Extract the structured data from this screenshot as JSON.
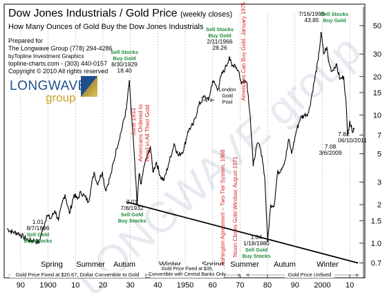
{
  "chart_data": {
    "type": "line",
    "title": "Dow Jones Industrials / Gold Price",
    "title_suffix": "(weekly closes)",
    "subtitle": "How Many Ounces of Gold Buy the Dow Jones Industrials",
    "credits": [
      "Prepared for",
      "The Longwave Group (778) 294-4286",
      "byTopline Investment Graphics",
      "topline-charts.com - (303) 440-0157",
      "Copyright © 2010   All rights reserved"
    ],
    "logo_text": "LONGWAVE",
    "logo_subtext": "group",
    "watermark": "LONGWAVE group",
    "y_scale": "log",
    "ylim": [
      0.6,
      70
    ],
    "xlim": [
      1885,
      2014
    ],
    "y_ticks": [
      0.7,
      1.0,
      1.5,
      2,
      3,
      5,
      7,
      10,
      15,
      20,
      30,
      50
    ],
    "y_tick_labels": [
      "0.7",
      "1.0",
      "1.5",
      "2",
      "3",
      "5",
      "7",
      "10",
      "15",
      "20",
      "30",
      "50"
    ],
    "x_ticks": [
      1890,
      1900,
      1910,
      1920,
      1930,
      1940,
      1950,
      1960,
      1970,
      1980,
      1990,
      2000,
      2010
    ],
    "x_tick_labels": [
      "90",
      "1900",
      "10",
      "20",
      "30",
      "40",
      "1950",
      "60",
      "70",
      "80",
      "90",
      "2000",
      "10"
    ],
    "grid": "vertical dotted",
    "series": [
      {
        "x": [
          1885,
          1887,
          1889,
          1891,
          1893,
          1895,
          1896.6,
          1898,
          1899.5,
          1901,
          1902.5,
          1903.8,
          1905.5,
          1906.2,
          1907.8,
          1909.5,
          1910.7,
          1912,
          1913.5,
          1914.7,
          1915.8,
          1916.8,
          1917.9,
          1919.8,
          1920.9,
          1921.6,
          1923,
          1925,
          1927,
          1928.5,
          1929.66,
          1930.3,
          1931,
          1931.8,
          1932.5,
          1933.2,
          1934,
          1935,
          1936.5,
          1937.3,
          1938.2,
          1939.5,
          1941,
          1942.3,
          1944,
          1946,
          1947.5,
          1949.5,
          1951,
          1953,
          1955,
          1957,
          1958.5,
          1960,
          1962,
          1963,
          1964.5,
          1966.12,
          1967,
          1968,
          1969.5,
          1970.5,
          1971.5,
          1972.5,
          1973.7,
          1974.8,
          1975.8,
          1976.8,
          1978,
          1979,
          1980.05,
          1981.2,
          1982.5,
          1983.6,
          1985,
          1986.5,
          1987.8,
          1988.8,
          1990.5,
          1992,
          1993.5,
          1995,
          1997,
          1998.5,
          1999.54,
          2000.5,
          2001.6,
          2002.3,
          2003.5,
          2005,
          2006.5,
          2007.8,
          2008.7,
          2009.18,
          2010,
          2010.8,
          2011.44
        ],
        "values": [
          1.3,
          1.22,
          1.2,
          1.12,
          1.05,
          1.05,
          1.01,
          1.25,
          1.65,
          1.55,
          1.8,
          1.5,
          2.2,
          2.4,
          1.7,
          2.4,
          2.2,
          2.5,
          2.3,
          2.1,
          2.8,
          3.6,
          2.9,
          3.6,
          2.6,
          2.8,
          3.5,
          5.5,
          8.0,
          11.0,
          18.4,
          10.5,
          7.0,
          3.5,
          2.01,
          3.5,
          2.9,
          4.0,
          5.0,
          5.7,
          3.6,
          4.3,
          3.3,
          3.1,
          4.2,
          6.0,
          4.8,
          5.4,
          7.5,
          8.5,
          12.0,
          14.0,
          13.0,
          18.5,
          16.0,
          20.0,
          23.0,
          28.26,
          24.0,
          25.0,
          22.0,
          17.5,
          19.0,
          18.0,
          10.0,
          4.0,
          5.5,
          6.0,
          4.8,
          3.3,
          1.04,
          2.0,
          2.0,
          3.5,
          3.8,
          4.5,
          6.5,
          5.0,
          7.5,
          9.5,
          10.0,
          10.5,
          18.0,
          27.0,
          43.85,
          30.0,
          34.0,
          26.0,
          22.0,
          25.0,
          19.0,
          20.0,
          12.0,
          7.08,
          9.0,
          7.6,
          7.82
        ]
      }
    ],
    "trendline": {
      "x": [
        1928.5,
        2013
      ],
      "values": [
        2.1,
        0.7
      ]
    },
    "annotations": [
      {
        "id": "a1896",
        "x": 1896.6,
        "value": 1.01,
        "lines": [
          "1.01",
          "8/7/1896",
          "Sell Gold",
          "Buy Stocks"
        ]
      },
      {
        "id": "a1929",
        "x": 1929.66,
        "value": 18.4,
        "lines": [
          "Sell Stocks",
          "Buy Gold",
          "8/30/1929",
          "18.40"
        ]
      },
      {
        "id": "a1932",
        "x": 1932.5,
        "value": 2.01,
        "lines": [
          "2.01",
          "7/8/1932",
          "Sell Gold",
          "Buy Stocks"
        ]
      },
      {
        "id": "a1966",
        "x": 1966.12,
        "value": 28.26,
        "lines": [
          "Sell Stocks",
          "Buy Gold",
          "2/11/1966",
          "28.26"
        ]
      },
      {
        "id": "a1980",
        "x": 1980.05,
        "value": 1.04,
        "lines": [
          "1.04",
          "1/18/1980",
          "Sell Gold",
          "Buy Stocks"
        ]
      },
      {
        "id": "a1999",
        "x": 1999.54,
        "value": 43.85,
        "lines": [
          "7/16/1999",
          "43.85"
        ]
      },
      {
        "id": "a1999b",
        "lines": [
          "Sell Stocks",
          "Buy Gold"
        ]
      },
      {
        "id": "a2009",
        "x": 2009.18,
        "value": 7.08,
        "lines": [
          "7.08",
          "3/6/2009"
        ]
      },
      {
        "id": "a2011",
        "x": 2011.44,
        "value": 7.82,
        "lines": [
          "7.82",
          "06/10/2011"
        ]
      }
    ],
    "event_notes": [
      {
        "id": "e1933",
        "text": "June 1933"
      },
      {
        "id": "e1933b",
        "text": "Americans Ordered to"
      },
      {
        "id": "e1933c",
        "text": "Hand in All Their Gold"
      },
      {
        "id": "e1968",
        "text": "Washington Agreement – Two-Tier System, 1968"
      },
      {
        "id": "e1971",
        "text": "Nixon Closes Gold Window, August 1971"
      },
      {
        "id": "e1975",
        "text": "Americans Can Buy Gold, January 1975"
      }
    ],
    "london_pool": [
      "London",
      "Gold",
      "Pool"
    ],
    "seasons": [
      "Spring",
      "Summer",
      "Autum",
      "Winter",
      "Spring",
      "Summer",
      "Autum",
      "Winter"
    ],
    "eras": [
      {
        "label": "Gold Price Fixed at $20.67, Dollar Convertible to Gold"
      },
      {
        "label": "Gold Price Fixed at $35,",
        "label2": "Convertible with Central Banks Only"
      },
      {
        "label": "Gold Price Unfixed"
      }
    ],
    "colors": {
      "series": "#000000",
      "green_note": "#1a8a3a",
      "red_note": "#d42020",
      "title_blue": "#000000",
      "logo_blue": "#1e4f8c",
      "logo_gold": "#c9a227",
      "grid": "#9a9a9a"
    }
  }
}
